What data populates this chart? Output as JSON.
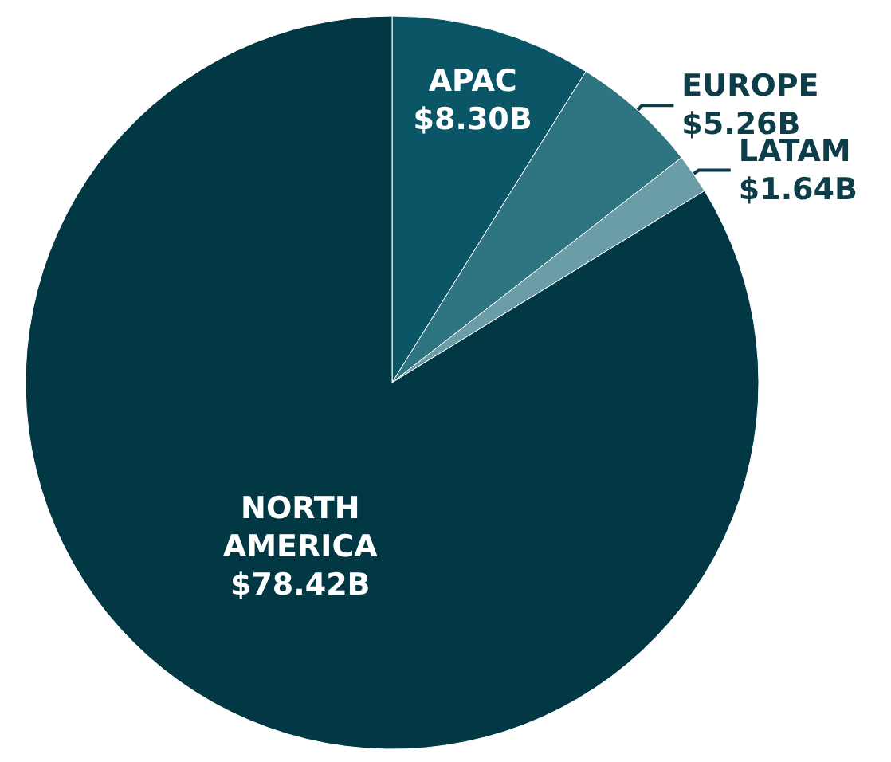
{
  "chart_data": {
    "type": "pie",
    "categories": [
      "APAC",
      "EUROPE",
      "LATAM",
      "NORTH AMERICA"
    ],
    "values": [
      8.3,
      5.26,
      1.64,
      78.42
    ],
    "value_labels": [
      "$8.30B",
      "$5.26B",
      "$1.64B",
      "$78.42B"
    ],
    "colors": [
      "#0a5566",
      "#2f7481",
      "#6a9da6",
      "#023843"
    ],
    "legend": false
  }
}
